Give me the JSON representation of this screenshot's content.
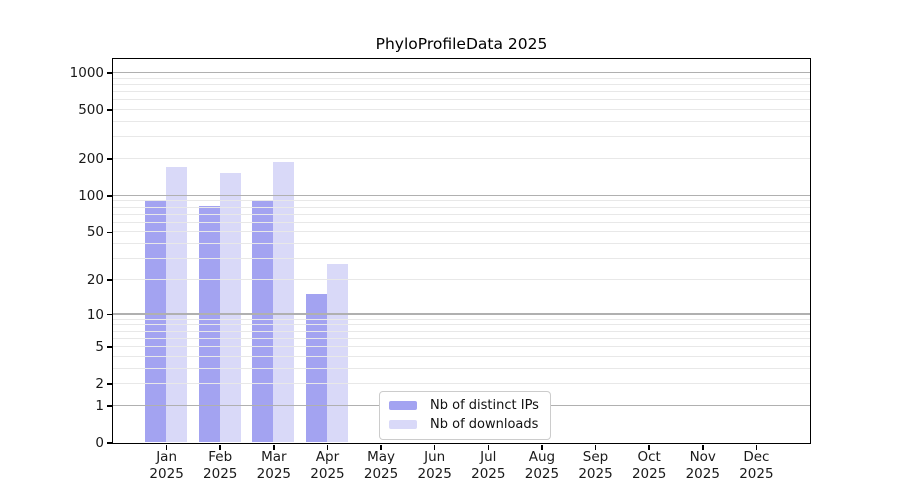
{
  "chart_data": {
    "type": "bar",
    "title": "PhyloProfileData 2025",
    "x_categories": [
      "Jan",
      "Feb",
      "Mar",
      "Apr",
      "May",
      "Jun",
      "Jul",
      "Aug",
      "Sep",
      "Oct",
      "Nov",
      "Dec"
    ],
    "x_year": "2025",
    "series": [
      {
        "name": "Nb of distinct IPs",
        "color": "#a3a3f1",
        "values": [
          90,
          82,
          91,
          15,
          0,
          0,
          0,
          0,
          0,
          0,
          0,
          0
        ]
      },
      {
        "name": "Nb of downloads",
        "color": "#d9d9f8",
        "values": [
          170,
          152,
          187,
          27,
          0,
          0,
          0,
          0,
          0,
          0,
          0,
          0
        ]
      }
    ],
    "y_axis": {
      "scale": "log10(1+x)",
      "tick_values": [
        0,
        1,
        2,
        5,
        10,
        20,
        50,
        100,
        200,
        500,
        1000
      ],
      "major_grid_values": [
        1,
        10,
        100,
        1000
      ],
      "minor_grid_values": [
        2,
        3,
        4,
        5,
        6,
        7,
        8,
        9,
        20,
        30,
        40,
        50,
        60,
        70,
        80,
        90,
        200,
        300,
        400,
        500,
        600,
        700,
        800,
        900
      ],
      "top_value": 1276
    },
    "legend": {
      "position": "lower center inside"
    },
    "grid": true,
    "colors": {
      "major_grid": "#b0b0b0",
      "minor_grid": "#e8e8e8",
      "spine": "#000000",
      "text": "#1a1a1a",
      "legend_border": "#cccccc",
      "background": "#ffffff"
    }
  }
}
